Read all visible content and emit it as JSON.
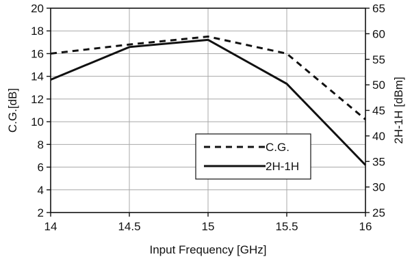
{
  "chart_data": {
    "type": "line",
    "title": "",
    "xlabel": "Input Frequency [GHz]",
    "ylabel_left": "C.G.[dB]",
    "ylabel_right": "2H-1H [dBm]",
    "x_ticks": [
      "14",
      "14.5",
      "15",
      "15.5",
      "16"
    ],
    "y_left_ticks": [
      "2",
      "4",
      "6",
      "8",
      "10",
      "12",
      "14",
      "16",
      "18",
      "20"
    ],
    "y_right_ticks": [
      "25",
      "30",
      "35",
      "40",
      "45",
      "50",
      "55",
      "60",
      "65"
    ],
    "xlim": [
      14,
      16
    ],
    "ylim_left": [
      2,
      20
    ],
    "ylim_right": [
      25,
      65
    ],
    "grid": true,
    "legend_position": "center-right",
    "series": [
      {
        "name": "C.G.",
        "axis": "left",
        "style": "dashed",
        "color": "#111111",
        "x": [
          14,
          14.5,
          15,
          15.5,
          16
        ],
        "values": [
          16.0,
          16.8,
          17.5,
          16.0,
          10.2
        ]
      },
      {
        "name": "2H-1H",
        "axis": "right",
        "style": "solid",
        "color": "#111111",
        "x": [
          14,
          14.5,
          15,
          15.5,
          16
        ],
        "values": [
          51.0,
          57.4,
          58.8,
          50.2,
          34.3
        ]
      }
    ]
  }
}
